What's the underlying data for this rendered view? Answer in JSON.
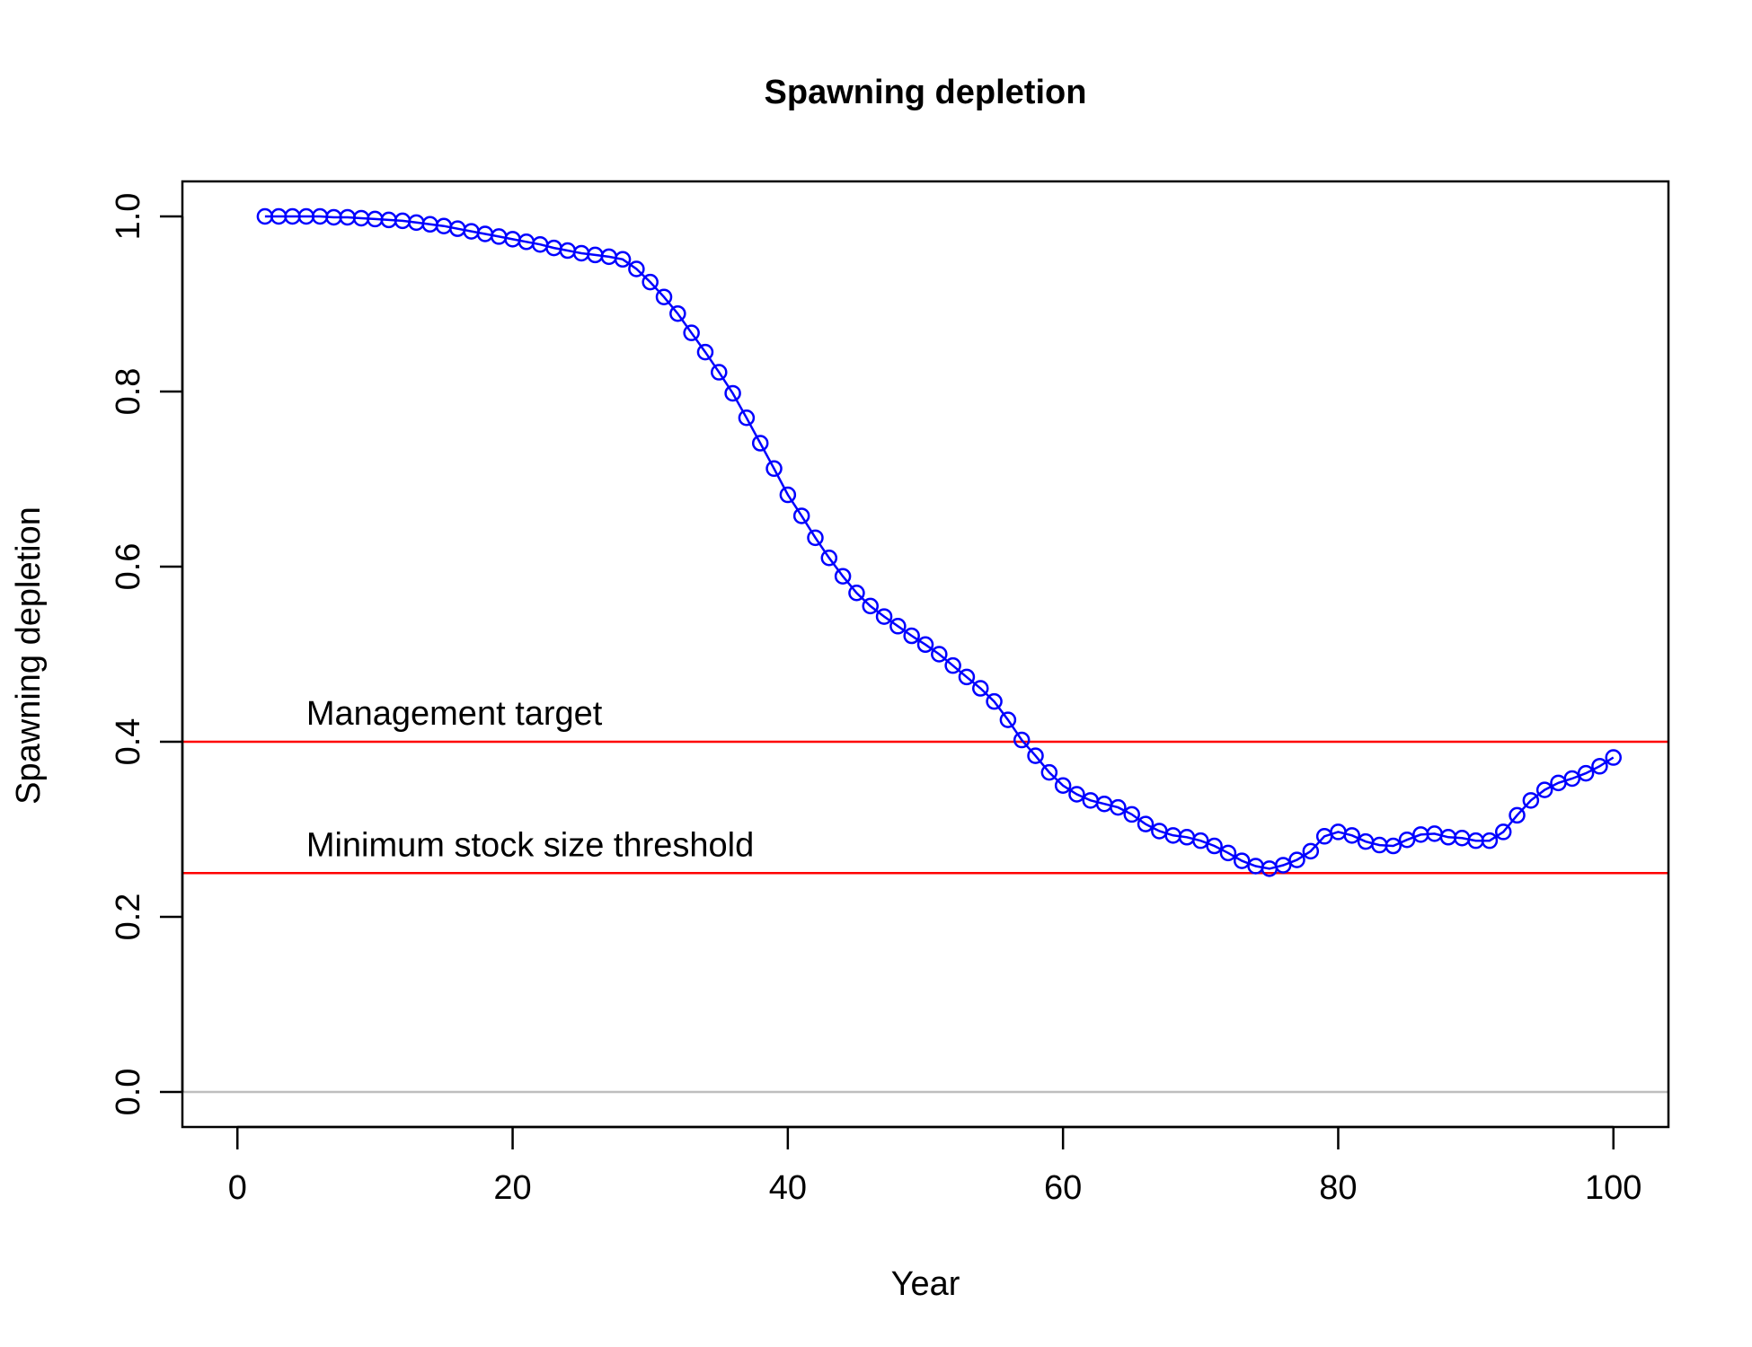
{
  "chart_data": {
    "type": "line",
    "title": "Spawning depletion",
    "xlabel": "Year",
    "ylabel": "Spawning depletion",
    "xlim": [
      -4,
      104
    ],
    "ylim": [
      -0.04,
      1.04
    ],
    "xticks": [
      0,
      20,
      40,
      60,
      80,
      100
    ],
    "xtick_labels": [
      "0",
      "20",
      "40",
      "60",
      "80",
      "100"
    ],
    "yticks": [
      0.0,
      0.2,
      0.4,
      0.6,
      0.8,
      1.0
    ],
    "ytick_labels": [
      "0.0",
      "0.2",
      "0.4",
      "0.6",
      "0.8",
      "1.0"
    ],
    "grid": false,
    "colors": {
      "series": "#0000ff",
      "reference": "#ff0000",
      "zero_line": "#bebebe",
      "axes": "#000000"
    },
    "reference_lines": [
      {
        "y": 0.4,
        "label": "Management target"
      },
      {
        "y": 0.25,
        "label": "Minimum stock size threshold"
      }
    ],
    "zero_line": {
      "y": 0.0
    },
    "series": [
      {
        "marker": "open-circle",
        "x": [
          2,
          3,
          4,
          5,
          6,
          7,
          8,
          9,
          10,
          11,
          12,
          13,
          14,
          15,
          16,
          17,
          18,
          19,
          20,
          21,
          22,
          23,
          24,
          25,
          26,
          27,
          28,
          29,
          30,
          31,
          32,
          33,
          34,
          35,
          36,
          37,
          38,
          39,
          40,
          41,
          42,
          43,
          44,
          45,
          46,
          47,
          48,
          49,
          50,
          51,
          52,
          53,
          54,
          55,
          56,
          57,
          58,
          59,
          60,
          61,
          62,
          63,
          64,
          65,
          66,
          67,
          68,
          69,
          70,
          71,
          72,
          73,
          74,
          75,
          76,
          77,
          78,
          79,
          80,
          81,
          82,
          83,
          84,
          85,
          86,
          87,
          88,
          89,
          90,
          91,
          92,
          93,
          94,
          95,
          96,
          97,
          98,
          99,
          100
        ],
        "y": [
          1.0,
          1.0,
          1.0,
          1.0,
          1.0,
          0.999,
          0.999,
          0.998,
          0.997,
          0.996,
          0.995,
          0.993,
          0.991,
          0.989,
          0.986,
          0.983,
          0.98,
          0.977,
          0.974,
          0.971,
          0.968,
          0.964,
          0.961,
          0.958,
          0.956,
          0.954,
          0.951,
          0.94,
          0.925,
          0.908,
          0.889,
          0.867,
          0.845,
          0.822,
          0.798,
          0.77,
          0.741,
          0.712,
          0.682,
          0.658,
          0.633,
          0.61,
          0.589,
          0.57,
          0.555,
          0.543,
          0.532,
          0.521,
          0.511,
          0.5,
          0.487,
          0.474,
          0.461,
          0.446,
          0.425,
          0.402,
          0.384,
          0.365,
          0.35,
          0.34,
          0.333,
          0.329,
          0.325,
          0.317,
          0.306,
          0.298,
          0.293,
          0.291,
          0.287,
          0.281,
          0.273,
          0.264,
          0.258,
          0.255,
          0.259,
          0.265,
          0.275,
          0.292,
          0.297,
          0.293,
          0.286,
          0.282,
          0.281,
          0.288,
          0.294,
          0.295,
          0.291,
          0.29,
          0.287,
          0.287,
          0.297,
          0.316,
          0.333,
          0.345,
          0.353,
          0.358,
          0.364,
          0.372,
          0.382
        ]
      }
    ]
  }
}
